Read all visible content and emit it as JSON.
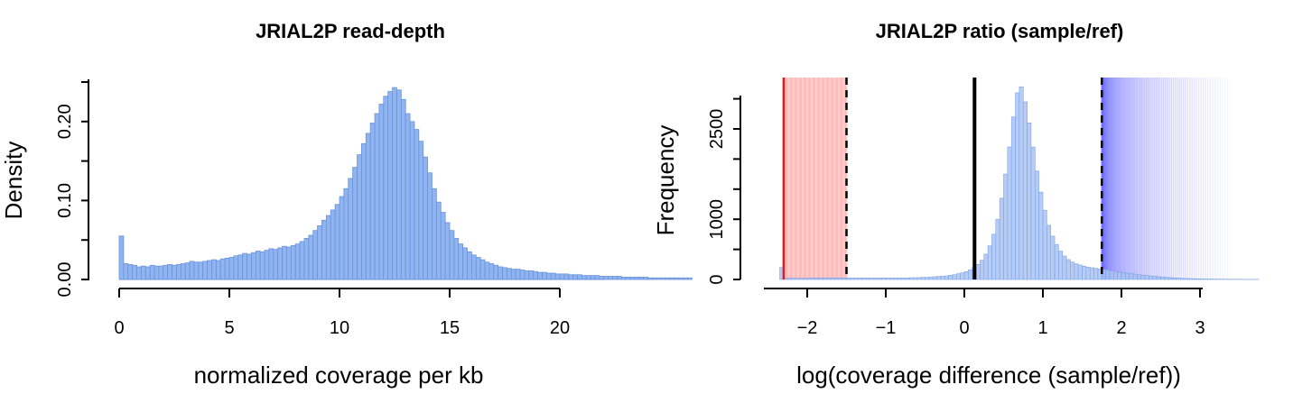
{
  "chart_data": [
    {
      "type": "bar",
      "title": "JRIAL2P read-depth",
      "xlabel": "normalized coverage per kb",
      "ylabel": "Density",
      "xlim": [
        0,
        22
      ],
      "ylim": [
        0,
        0.25
      ],
      "xticks": [
        "0",
        "5",
        "10",
        "15",
        "20"
      ],
      "yticks": [
        "0.00",
        "0.10",
        "0.20"
      ],
      "bin_width": 0.2,
      "bar_color": "#8fb4f0",
      "bar_edge": "#6b93dc",
      "values": [
        0.055,
        0.02,
        0.019,
        0.018,
        0.016,
        0.017,
        0.016,
        0.018,
        0.017,
        0.017,
        0.018,
        0.019,
        0.018,
        0.019,
        0.02,
        0.021,
        0.023,
        0.022,
        0.022,
        0.023,
        0.024,
        0.025,
        0.024,
        0.026,
        0.027,
        0.028,
        0.03,
        0.031,
        0.033,
        0.032,
        0.034,
        0.036,
        0.035,
        0.037,
        0.039,
        0.038,
        0.04,
        0.042,
        0.041,
        0.043,
        0.045,
        0.048,
        0.052,
        0.056,
        0.062,
        0.068,
        0.075,
        0.081,
        0.088,
        0.095,
        0.105,
        0.115,
        0.128,
        0.142,
        0.158,
        0.172,
        0.185,
        0.198,
        0.21,
        0.222,
        0.232,
        0.238,
        0.243,
        0.24,
        0.228,
        0.21,
        0.2,
        0.19,
        0.175,
        0.155,
        0.135,
        0.115,
        0.098,
        0.085,
        0.072,
        0.062,
        0.052,
        0.045,
        0.04,
        0.035,
        0.031,
        0.028,
        0.025,
        0.022,
        0.02,
        0.018,
        0.016,
        0.015,
        0.014,
        0.013,
        0.013,
        0.012,
        0.011,
        0.011,
        0.01,
        0.009,
        0.009,
        0.008,
        0.008,
        0.007,
        0.007,
        0.007,
        0.006,
        0.006,
        0.006,
        0.005,
        0.005,
        0.005,
        0.005,
        0.004,
        0.004,
        0.004,
        0.004,
        0.004,
        0.003,
        0.003,
        0.003,
        0.003,
        0.003,
        0.003,
        0.002,
        0.002,
        0.002,
        0.002,
        0.002,
        0.002,
        0.002,
        0.002,
        0.002,
        0.002
      ]
    },
    {
      "type": "bar",
      "title": "JRIAL2P ratio (sample/ref)",
      "xlabel": "log(coverage difference (sample/ref))",
      "ylabel": "Frequency",
      "xlim": [
        -2.4,
        3.4
      ],
      "ylim": [
        0,
        3200
      ],
      "xticks": [
        "−2",
        "−1",
        "0",
        "1",
        "2",
        "3"
      ],
      "yticks": [
        "0",
        "1000",
        "2500"
      ],
      "bin_width": 0.05,
      "bar_start": -2.35,
      "bar_color": "#a9c3f2",
      "bar_edge": "#7fa3e6",
      "values": [
        200,
        20,
        20,
        20,
        20,
        20,
        20,
        20,
        25,
        25,
        25,
        25,
        25,
        25,
        25,
        25,
        25,
        25,
        25,
        25,
        25,
        25,
        25,
        25,
        25,
        25,
        25,
        25,
        25,
        25,
        25,
        25,
        25,
        30,
        30,
        30,
        35,
        35,
        40,
        45,
        50,
        55,
        60,
        70,
        80,
        95,
        110,
        130,
        160,
        200,
        250,
        320,
        420,
        560,
        750,
        1000,
        1350,
        1750,
        2200,
        2700,
        3100,
        3200,
        2950,
        2600,
        2200,
        1800,
        1450,
        1150,
        900,
        720,
        580,
        470,
        390,
        330,
        290,
        260,
        240,
        220,
        205,
        195,
        185,
        175,
        165,
        155,
        145,
        135,
        125,
        115,
        105,
        95,
        88,
        80,
        72,
        65,
        58,
        52,
        46,
        40,
        35,
        30,
        26,
        22,
        19,
        16,
        14,
        12,
        10,
        9,
        8,
        7,
        6,
        5,
        5,
        4,
        4,
        3,
        3,
        3,
        2,
        2,
        2,
        2
      ],
      "lines": [
        {
          "x": -2.3,
          "color": "#e41a1c",
          "style": "solid"
        },
        {
          "x": -1.5,
          "color": "#000000",
          "style": "dashed"
        },
        {
          "x": 0.13,
          "color": "#000000",
          "style": "solid"
        },
        {
          "x": 1.75,
          "color": "#000000",
          "style": "dashed"
        }
      ],
      "shaded_low": {
        "from": -2.3,
        "to": -1.5,
        "color": "#ff8080"
      },
      "shaded_high": {
        "from": 1.75,
        "to": 3.35,
        "color": "#6b6bff"
      }
    }
  ]
}
